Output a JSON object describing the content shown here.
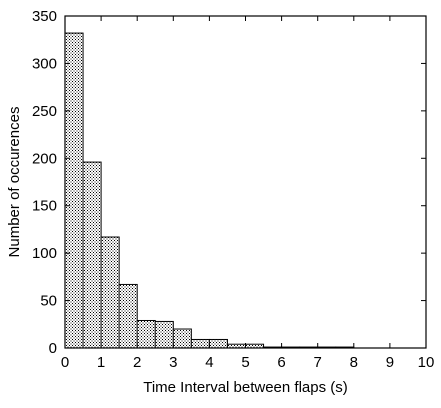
{
  "chart_data": {
    "type": "bar",
    "title": "",
    "xlabel": "Time Interval between flaps (s)",
    "ylabel": "Number of occurences",
    "xlim": [
      0,
      10
    ],
    "ylim": [
      0,
      350
    ],
    "xticks": [
      0,
      1,
      2,
      3,
      4,
      5,
      6,
      7,
      8,
      9,
      10
    ],
    "yticks": [
      0,
      50,
      100,
      150,
      200,
      250,
      300,
      350
    ],
    "bin_width": 0.5,
    "bins": [
      {
        "x0": 0.0,
        "x1": 0.5,
        "value": 332
      },
      {
        "x0": 0.5,
        "x1": 1.0,
        "value": 196
      },
      {
        "x0": 1.0,
        "x1": 1.5,
        "value": 117
      },
      {
        "x0": 1.5,
        "x1": 2.0,
        "value": 67
      },
      {
        "x0": 2.0,
        "x1": 2.5,
        "value": 29
      },
      {
        "x0": 2.5,
        "x1": 3.0,
        "value": 28
      },
      {
        "x0": 3.0,
        "x1": 3.5,
        "value": 20
      },
      {
        "x0": 3.5,
        "x1": 4.0,
        "value": 9
      },
      {
        "x0": 4.0,
        "x1": 4.5,
        "value": 9
      },
      {
        "x0": 4.5,
        "x1": 5.0,
        "value": 4
      },
      {
        "x0": 5.0,
        "x1": 5.5,
        "value": 4
      },
      {
        "x0": 5.5,
        "x1": 6.0,
        "value": 1
      },
      {
        "x0": 6.0,
        "x1": 6.5,
        "value": 1
      },
      {
        "x0": 6.5,
        "x1": 7.0,
        "value": 1
      },
      {
        "x0": 7.0,
        "x1": 7.5,
        "value": 1
      },
      {
        "x0": 7.5,
        "x1": 8.0,
        "value": 1
      },
      {
        "x0": 8.0,
        "x1": 8.5,
        "value": 0
      },
      {
        "x0": 8.5,
        "x1": 9.0,
        "value": 0
      },
      {
        "x0": 9.0,
        "x1": 9.5,
        "value": 0
      },
      {
        "x0": 9.5,
        "x1": 10.0,
        "value": 0
      }
    ],
    "grid": false,
    "fill_pattern": "crosshatch"
  }
}
